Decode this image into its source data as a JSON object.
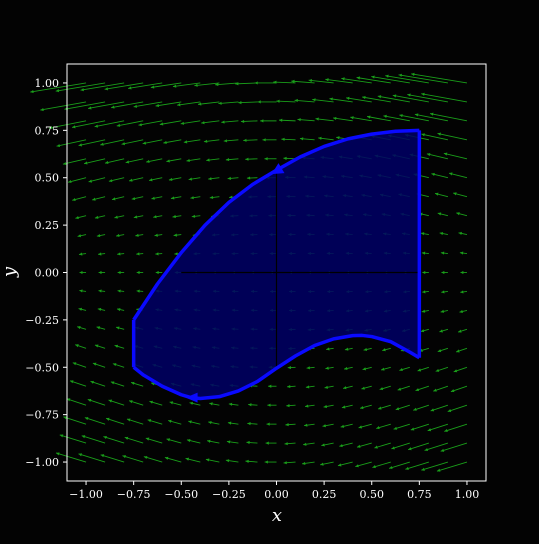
{
  "chart_data": {
    "type": "vector_field_with_region",
    "xlabel": "x",
    "ylabel": "y",
    "xlim": [
      -1.1,
      1.1
    ],
    "ylim": [
      -1.1,
      1.1
    ],
    "xticks": [
      -1.0,
      -0.75,
      -0.5,
      -0.25,
      0.0,
      0.25,
      0.5,
      0.75,
      1.0
    ],
    "yticks": [
      -1.0,
      -0.75,
      -0.5,
      -0.25,
      0.0,
      0.25,
      0.5,
      0.75,
      1.0
    ],
    "xtick_labels": [
      "−1.00",
      "−0.75",
      "−0.50",
      "−0.25",
      "0.00",
      "0.25",
      "0.50",
      "0.75",
      "1.00"
    ],
    "ytick_labels": [
      "−1.00",
      "−0.75",
      "−0.50",
      "−0.25",
      "0.00",
      "0.25",
      "0.50",
      "0.75",
      "1.00"
    ],
    "grid": false,
    "vector_field": {
      "grid_x": [
        -1.0,
        -0.9,
        -0.8,
        -0.7,
        -0.6,
        -0.5,
        -0.4,
        -0.3,
        -0.2,
        -0.1,
        0.0,
        0.1,
        0.2,
        0.3,
        0.4,
        0.5,
        0.6,
        0.7,
        0.8,
        0.9,
        1.0
      ],
      "grid_y": [
        -1.0,
        -0.9,
        -0.8,
        -0.7,
        -0.6,
        -0.5,
        -0.4,
        -0.3,
        -0.2,
        -0.1,
        0.0,
        0.1,
        0.2,
        0.3,
        0.4,
        0.5,
        0.6,
        0.7,
        0.8,
        0.9,
        1.0
      ],
      "field": "F(x,y) = (-(1+0.3 y)(0.25 + x^2 y^2 + 0.4 y^2), 0.35 x y)",
      "color": "#1a9e1a"
    },
    "region": {
      "fill": "#000066",
      "edge_color": "#0a0aff",
      "upper_boundary": [
        [
          -0.75,
          -0.25
        ],
        [
          -0.625,
          -0.06
        ],
        [
          -0.5,
          0.105
        ],
        [
          -0.375,
          0.25
        ],
        [
          -0.25,
          0.37
        ],
        [
          -0.125,
          0.465
        ],
        [
          0.0,
          0.54
        ],
        [
          0.125,
          0.61
        ],
        [
          0.25,
          0.665
        ],
        [
          0.375,
          0.705
        ],
        [
          0.5,
          0.73
        ],
        [
          0.625,
          0.745
        ],
        [
          0.75,
          0.75
        ]
      ],
      "lower_boundary": [
        [
          -0.75,
          -0.5
        ],
        [
          -0.7,
          -0.54
        ],
        [
          -0.6,
          -0.6
        ],
        [
          -0.5,
          -0.645
        ],
        [
          -0.45,
          -0.66
        ],
        [
          -0.4,
          -0.665
        ],
        [
          -0.3,
          -0.655
        ],
        [
          -0.2,
          -0.625
        ],
        [
          -0.1,
          -0.575
        ],
        [
          0.0,
          -0.505
        ],
        [
          0.1,
          -0.44
        ],
        [
          0.2,
          -0.385
        ],
        [
          0.3,
          -0.35
        ],
        [
          0.4,
          -0.333
        ],
        [
          0.45,
          -0.332
        ],
        [
          0.5,
          -0.338
        ],
        [
          0.6,
          -0.365
        ],
        [
          0.7,
          -0.42
        ],
        [
          0.75,
          -0.45
        ]
      ],
      "left_edge": [
        [
          -0.75,
          -0.5
        ],
        [
          -0.75,
          -0.25
        ]
      ],
      "right_edge": [
        [
          0.75,
          -0.45
        ],
        [
          0.75,
          0.75
        ]
      ],
      "orientation_arrows": [
        {
          "at": [
            0.0,
            0.54
          ],
          "direction": "up"
        },
        {
          "at": [
            -0.43,
            -0.66
          ],
          "direction": "left"
        }
      ],
      "inner_axis_lines": [
        {
          "from": [
            0.0,
            -0.505
          ],
          "to": [
            0.0,
            0.54
          ]
        },
        {
          "from": [
            -0.5,
            0.0
          ],
          "to": [
            0.75,
            0.0
          ]
        }
      ]
    }
  }
}
